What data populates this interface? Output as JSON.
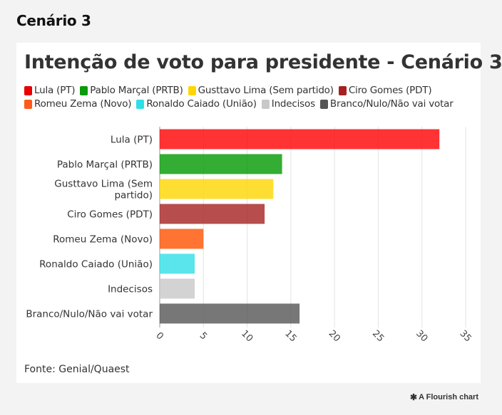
{
  "header": {
    "section_title": "Cenário 3"
  },
  "chart_data": {
    "type": "bar",
    "orientation": "horizontal",
    "title": "Intenção de voto para presidente - Cenário 3",
    "categories": [
      "Lula (PT)",
      "Pablo Marçal (PRTB)",
      "Gusttavo Lima (Sem partido)",
      "Ciro Gomes (PDT)",
      "Romeu Zema (Novo)",
      "Ronaldo Caiado (União)",
      "Indecisos",
      "Branco/Nulo/Não vai votar"
    ],
    "category_lines": [
      [
        "Lula (PT)"
      ],
      [
        "Pablo Marçal (PRTB)"
      ],
      [
        "Gusttavo Lima (Sem",
        "partido)"
      ],
      [
        "Ciro Gomes (PDT)"
      ],
      [
        "Romeu Zema (Novo)"
      ],
      [
        "Ronaldo Caiado (União)"
      ],
      [
        "Indecisos"
      ],
      [
        "Branco/Nulo/Não vai votar"
      ]
    ],
    "values": [
      32,
      14,
      13,
      12,
      5,
      4,
      4,
      16
    ],
    "colors": [
      "#ff0000",
      "#009900",
      "#ffd600",
      "#a52020",
      "#ff5000",
      "#2fdfe6",
      "#c8c8c8",
      "#555555"
    ],
    "xlim": [
      0,
      35
    ],
    "xticks": [
      0,
      5,
      10,
      15,
      20,
      25,
      30,
      35
    ],
    "grid": true,
    "legend_position": "top"
  },
  "legend": [
    {
      "label": "Lula (PT)",
      "color": "#e80000"
    },
    {
      "label": "Pablo Marçal (PRTB)",
      "color": "#0a9a0a"
    },
    {
      "label": "Gusttavo Lima (Sem partido)",
      "color": "#ffd600"
    },
    {
      "label": "Ciro Gomes (PDT)",
      "color": "#a52020"
    },
    {
      "label": "Romeu Zema (Novo)",
      "color": "#ff5a1a"
    },
    {
      "label": "Ronaldo Caiado (União)",
      "color": "#2fdfe6"
    },
    {
      "label": "Indecisos",
      "color": "#c8c8c8"
    },
    {
      "label": "Branco/Nulo/Não vai votar",
      "color": "#555555"
    }
  ],
  "footer": {
    "source": "Fonte: Genial/Quaest",
    "credit": "A Flourish chart"
  }
}
